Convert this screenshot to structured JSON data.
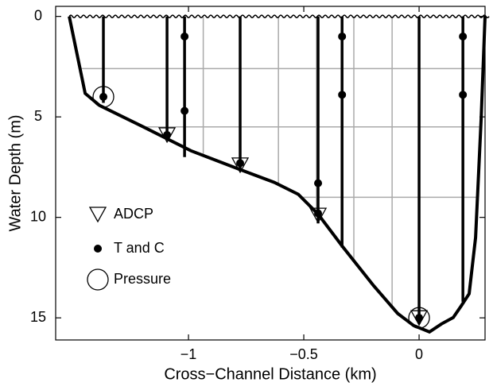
{
  "chart_data": {
    "type": "scatter",
    "xlabel": "Cross−Channel Distance (km)",
    "ylabel": "Water Depth (m)",
    "xlim": [
      -1.576,
      0.286
    ],
    "ylim": [
      -0.5,
      16.1
    ],
    "y_inverted": true,
    "xticks": [
      {
        "value": -1,
        "label": "−1"
      },
      {
        "value": -0.5,
        "label": "−0.5"
      },
      0
    ],
    "yticks": [
      0,
      5,
      10,
      15
    ],
    "grid": true,
    "grid_x": [
      -0.936,
      -0.776,
      -0.61,
      -0.445,
      -0.283,
      -0.117
    ],
    "grid_y": [
      2.6,
      5.5,
      9.0
    ],
    "bathymetry": {
      "x": [
        -1.517,
        -1.448,
        -1.386,
        -1.197,
        -0.99,
        -0.783,
        -0.628,
        -0.524,
        -0.438,
        -0.334,
        -0.197,
        -0.093,
        -0.024,
        0.045,
        0.097,
        0.148,
        0.183,
        0.217,
        0.245,
        0.269,
        0.286
      ],
      "values": [
        0,
        3.83,
        4.43,
        5.49,
        6.68,
        7.59,
        8.26,
        8.85,
        9.84,
        11.42,
        13.4,
        14.78,
        15.38,
        15.7,
        15.3,
        14.98,
        14.4,
        13.8,
        11.0,
        5.1,
        0
      ]
    },
    "moorings": {
      "x": [
        -1.369,
        -1.093,
        -1.017,
        -0.776,
        -0.438,
        -0.334,
        0,
        0.19
      ],
      "values": [
        4.3,
        6.1,
        7.0,
        7.7,
        10.3,
        11.5,
        15.3,
        14.2
      ]
    },
    "series": [
      {
        "name": "ADCP",
        "marker": "triangle",
        "x": [
          -1.093,
          -0.776,
          -0.438,
          0
        ],
        "values": [
          5.9,
          7.4,
          9.9,
          15.0
        ]
      },
      {
        "name": "T and C",
        "marker": "dot",
        "x": [
          -1.369,
          -1.093,
          -1.017,
          -1.017,
          -0.776,
          -0.438,
          -0.438,
          -0.334,
          -0.334,
          0,
          0.19,
          0.19
        ],
        "values": [
          4.0,
          5.9,
          1.0,
          4.7,
          7.3,
          8.3,
          9.8,
          1.0,
          3.9,
          15.0,
          1.0,
          3.9
        ]
      },
      {
        "name": "Pressure",
        "marker": "circle",
        "x": [
          -1.369,
          0
        ],
        "values": [
          4.0,
          15.0
        ]
      }
    ]
  }
}
